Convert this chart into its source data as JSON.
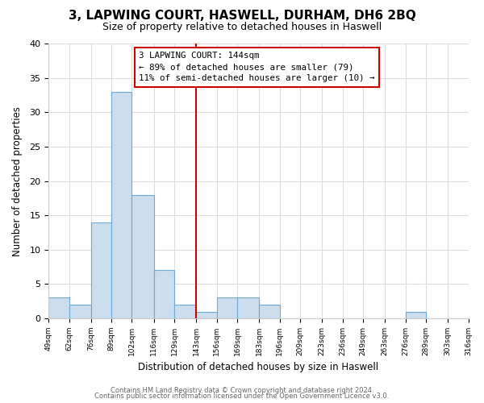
{
  "title": "3, LAPWING COURT, HASWELL, DURHAM, DH6 2BQ",
  "subtitle": "Size of property relative to detached houses in Haswell",
  "xlabel": "Distribution of detached houses by size in Haswell",
  "ylabel": "Number of detached properties",
  "bar_color": "#ccdded",
  "bar_edge_color": "#6aaad4",
  "bin_edges": [
    49,
    62,
    76,
    89,
    102,
    116,
    129,
    143,
    156,
    169,
    183,
    196,
    209,
    223,
    236,
    249,
    263,
    276,
    289,
    303,
    316
  ],
  "counts": [
    3,
    2,
    14,
    33,
    18,
    7,
    2,
    1,
    3,
    3,
    2,
    0,
    0,
    0,
    0,
    0,
    0,
    1,
    0,
    0
  ],
  "tick_labels": [
    "49sqm",
    "62sqm",
    "76sqm",
    "89sqm",
    "102sqm",
    "116sqm",
    "129sqm",
    "143sqm",
    "156sqm",
    "169sqm",
    "183sqm",
    "196sqm",
    "209sqm",
    "223sqm",
    "236sqm",
    "249sqm",
    "263sqm",
    "276sqm",
    "289sqm",
    "303sqm",
    "316sqm"
  ],
  "vline_x": 143,
  "vline_color": "#cc0000",
  "ylim": [
    0,
    40
  ],
  "yticks": [
    0,
    5,
    10,
    15,
    20,
    25,
    30,
    35,
    40
  ],
  "ann_line1": "3 LAPWING COURT: 144sqm",
  "ann_line2": "← 89% of detached houses are smaller (79)",
  "ann_line3": "11% of semi-detached houses are larger (10) →",
  "footer1": "Contains HM Land Registry data © Crown copyright and database right 2024.",
  "footer2": "Contains public sector information licensed under the Open Government Licence v3.0.",
  "bg_color": "#ffffff",
  "plot_bg_color": "#ffffff",
  "grid_color": "#dddddd"
}
